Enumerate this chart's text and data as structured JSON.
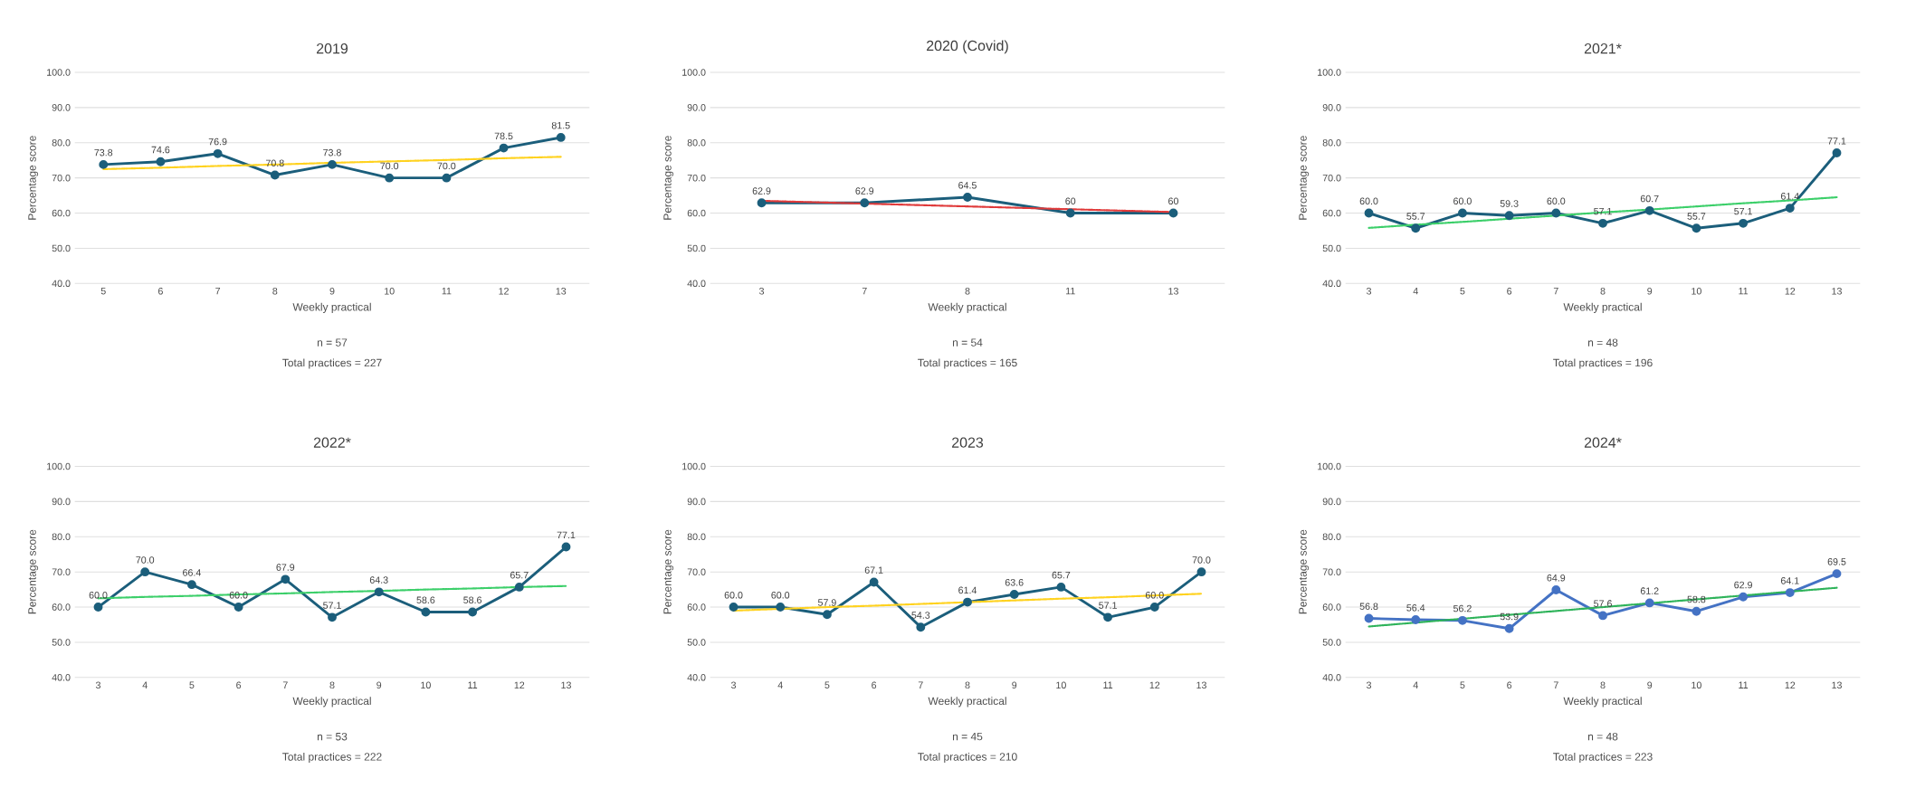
{
  "chart_data": [
    {
      "type": "line",
      "title": "2019",
      "xlabel": "Weekly practical",
      "ylabel": "Percentage score",
      "annotations": [
        "n = 57",
        "Total practices = 227"
      ],
      "categories": [
        "5",
        "6",
        "7",
        "8",
        "9",
        "10",
        "11",
        "12",
        "13"
      ],
      "ylim": [
        40,
        100
      ],
      "yticks": [
        {
          "value": 40,
          "label": "40.0"
        },
        {
          "value": 50,
          "label": "50.0"
        },
        {
          "value": 60,
          "label": "60.0"
        },
        {
          "value": 70,
          "label": "70.0"
        },
        {
          "value": 80,
          "label": "80.0"
        },
        {
          "value": 90,
          "label": "90.0"
        },
        {
          "value": 100,
          "label": "100.0"
        }
      ],
      "grid": "y",
      "series": [
        {
          "color": "#1b5e7b",
          "marker": "circle",
          "line_style": "solid",
          "values": [
            73.8,
            74.6,
            76.9,
            70.8,
            73.8,
            70.0,
            70.0,
            78.5,
            81.5
          ],
          "value_labels": [
            "73.8",
            "74.6",
            "76.9",
            "70.8",
            "73.8",
            "70.0",
            "70.0",
            "78.5",
            "81.5"
          ]
        },
        {
          "color": "#ffd21f",
          "marker": "none",
          "line_style": "dotted",
          "values": [
            72.5,
            72.9,
            73.4,
            73.8,
            74.3,
            74.7,
            75.1,
            75.6,
            76.0
          ]
        }
      ]
    },
    {
      "type": "line",
      "title": "2020 (Covid)",
      "xlabel": "Weekly practical",
      "ylabel": "Percentage score",
      "annotations": [
        "n = 54",
        "Total practices = 165"
      ],
      "categories": [
        "3",
        "7",
        "8",
        "11",
        "13"
      ],
      "ylim": [
        40,
        100
      ],
      "yticks": [
        {
          "value": 40,
          "label": "40.0"
        },
        {
          "value": 50,
          "label": "50.0"
        },
        {
          "value": 60,
          "label": "60.0"
        },
        {
          "value": 70,
          "label": "70.0"
        },
        {
          "value": 80,
          "label": "80.0"
        },
        {
          "value": 90,
          "label": "90.0"
        },
        {
          "value": 100,
          "label": "100.0"
        }
      ],
      "grid": "y",
      "series": [
        {
          "color": "#1b5e7b",
          "marker": "circle",
          "line_style": "solid",
          "values": [
            62.9,
            62.9,
            64.5,
            60,
            60
          ],
          "value_labels": [
            "62.9",
            "62.9",
            "64.5",
            "60",
            "60"
          ]
        },
        {
          "color": "#e03a3a",
          "marker": "none",
          "line_style": "dotted",
          "values": [
            63.5,
            62.7,
            61.9,
            61.1,
            60.3
          ]
        }
      ]
    },
    {
      "type": "line",
      "title": "2021*",
      "xlabel": "Weekly practical",
      "ylabel": "Percentage score",
      "annotations": [
        "n = 48",
        "Total practices = 196"
      ],
      "categories": [
        "3",
        "4",
        "5",
        "6",
        "7",
        "8",
        "9",
        "10",
        "11",
        "12",
        "13"
      ],
      "ylim": [
        40,
        100
      ],
      "yticks": [
        {
          "value": 40,
          "label": "40.0"
        },
        {
          "value": 50,
          "label": "50.0"
        },
        {
          "value": 60,
          "label": "60.0"
        },
        {
          "value": 70,
          "label": "70.0"
        },
        {
          "value": 80,
          "label": "80.0"
        },
        {
          "value": 90,
          "label": "90.0"
        },
        {
          "value": 100,
          "label": "100.0"
        }
      ],
      "grid": "y",
      "series": [
        {
          "color": "#1b5e7b",
          "marker": "circle",
          "line_style": "solid",
          "values": [
            60.0,
            55.7,
            60.0,
            59.3,
            60.0,
            57.1,
            60.7,
            55.7,
            57.1,
            61.4,
            77.1
          ],
          "value_labels": [
            "60.0",
            "55.7",
            "60.0",
            "59.3",
            "60.0",
            "57.1",
            "60.7",
            "55.7",
            "57.1",
            "61.4",
            "77.1"
          ]
        },
        {
          "color": "#3ccf6a",
          "marker": "none",
          "line_style": "dotted",
          "values": [
            55.8,
            56.7,
            57.5,
            58.4,
            59.3,
            60.2,
            61.0,
            61.9,
            62.8,
            63.6,
            64.5
          ]
        }
      ]
    },
    {
      "type": "line",
      "title": "2022*",
      "xlabel": "Weekly practical",
      "ylabel": "Percentage score",
      "annotations": [
        "n = 53",
        "Total practices = 222"
      ],
      "categories": [
        "3",
        "4",
        "5",
        "6",
        "7",
        "8",
        "9",
        "10",
        "11",
        "12",
        "13"
      ],
      "ylim": [
        40,
        100
      ],
      "yticks": [
        {
          "value": 40,
          "label": "40.0"
        },
        {
          "value": 50,
          "label": "50.0"
        },
        {
          "value": 60,
          "label": "60.0"
        },
        {
          "value": 70,
          "label": "70.0"
        },
        {
          "value": 80,
          "label": "80.0"
        },
        {
          "value": 90,
          "label": "90.0"
        },
        {
          "value": 100,
          "label": "100.0"
        }
      ],
      "grid": "y",
      "series": [
        {
          "color": "#1b5e7b",
          "marker": "circle",
          "line_style": "solid",
          "values": [
            60.0,
            70.0,
            66.4,
            60.0,
            67.9,
            57.1,
            64.3,
            58.6,
            58.6,
            65.7,
            77.1
          ],
          "value_labels": [
            "60.0",
            "70.0",
            "66.4",
            "60.0",
            "67.9",
            "57.1",
            "64.3",
            "58.6",
            "58.6",
            "65.7",
            "77.1"
          ]
        },
        {
          "color": "#3ccf6a",
          "marker": "none",
          "line_style": "dotted",
          "values": [
            62.5,
            62.9,
            63.2,
            63.6,
            63.9,
            64.3,
            64.6,
            65.0,
            65.3,
            65.7,
            66.0
          ]
        }
      ]
    },
    {
      "type": "line",
      "title": "2023",
      "xlabel": "Weekly practical",
      "ylabel": "Percentage score",
      "annotations": [
        "n = 45",
        "Total practices = 210"
      ],
      "categories": [
        "3",
        "4",
        "5",
        "6",
        "7",
        "8",
        "9",
        "10",
        "11",
        "12",
        "13"
      ],
      "ylim": [
        40,
        100
      ],
      "yticks": [
        {
          "value": 40,
          "label": "40.0"
        },
        {
          "value": 50,
          "label": "50.0"
        },
        {
          "value": 60,
          "label": "60.0"
        },
        {
          "value": 70,
          "label": "70.0"
        },
        {
          "value": 80,
          "label": "80.0"
        },
        {
          "value": 90,
          "label": "90.0"
        },
        {
          "value": 100,
          "label": "100.0"
        }
      ],
      "grid": "y",
      "series": [
        {
          "color": "#1b5e7b",
          "marker": "circle",
          "line_style": "solid",
          "values": [
            60.0,
            60.0,
            57.9,
            67.1,
            54.3,
            61.4,
            63.6,
            65.7,
            57.1,
            60.0,
            70.0
          ],
          "value_labels": [
            "60.0",
            "60.0",
            "57.9",
            "67.1",
            "54.3",
            "61.4",
            "63.6",
            "65.7",
            "57.1",
            "60.0",
            "70.0"
          ]
        },
        {
          "color": "#ffd21f",
          "marker": "none",
          "line_style": "dotted",
          "values": [
            59.0,
            59.5,
            60.0,
            60.4,
            60.9,
            61.4,
            61.9,
            62.4,
            62.8,
            63.3,
            63.8
          ]
        }
      ]
    },
    {
      "type": "line",
      "title": "2024*",
      "xlabel": "Weekly practical",
      "ylabel": "Percentage score",
      "annotations": [
        "n = 48",
        "Total practices = 223"
      ],
      "categories": [
        "3",
        "4",
        "5",
        "6",
        "7",
        "8",
        "9",
        "10",
        "11",
        "12",
        "13"
      ],
      "ylim": [
        40,
        100
      ],
      "yticks": [
        {
          "value": 40,
          "label": "40.0"
        },
        {
          "value": 50,
          "label": "50.0"
        },
        {
          "value": 60,
          "label": "60.0"
        },
        {
          "value": 70,
          "label": "70.0"
        },
        {
          "value": 80,
          "label": "80.0"
        },
        {
          "value": 90,
          "label": "90.0"
        },
        {
          "value": 100,
          "label": "100.0"
        }
      ],
      "grid": "y",
      "series": [
        {
          "color": "#4472c4",
          "marker": "circle",
          "line_style": "solid",
          "values": [
            56.8,
            56.4,
            56.2,
            53.9,
            64.9,
            57.6,
            61.2,
            58.8,
            62.9,
            64.1,
            69.5
          ],
          "value_labels": [
            "56.8",
            "56.4",
            "56.2",
            "53.9",
            "64.9",
            "57.6",
            "61.2",
            "58.8",
            "62.9",
            "64.1",
            "69.5"
          ]
        },
        {
          "color": "#2eb35a",
          "marker": "none",
          "line_style": "dotted",
          "values": [
            54.5,
            55.6,
            56.7,
            57.8,
            58.9,
            60.0,
            61.1,
            62.2,
            63.3,
            64.4,
            65.5
          ]
        }
      ]
    }
  ]
}
